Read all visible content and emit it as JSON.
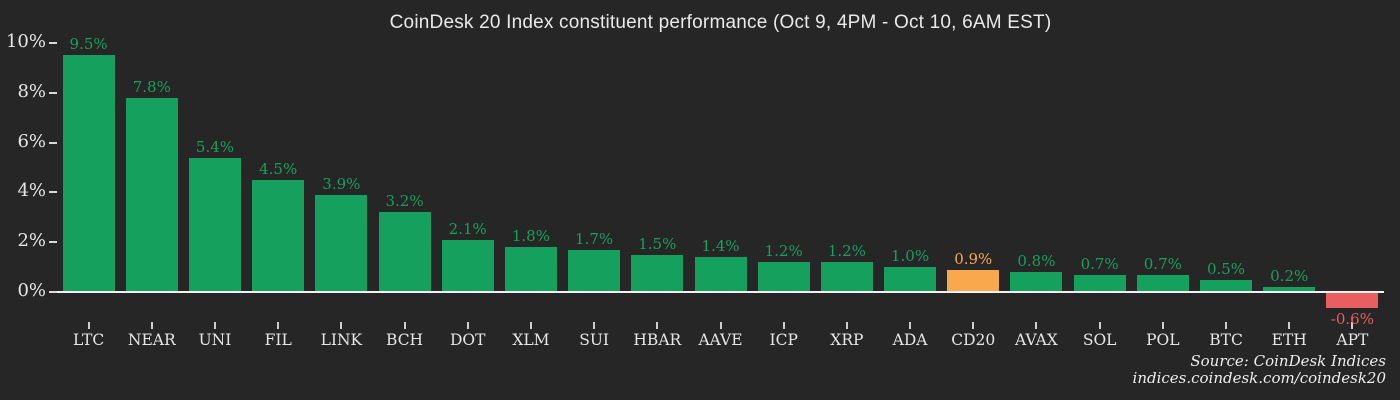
{
  "chart_data": {
    "type": "bar",
    "title": "CoinDesk 20 Index constituent performance (Oct 9, 4PM - Oct 10, 6AM EST)",
    "categories": [
      "LTC",
      "NEAR",
      "UNI",
      "FIL",
      "LINK",
      "BCH",
      "DOT",
      "XLM",
      "SUI",
      "HBAR",
      "AAVE",
      "ICP",
      "XRP",
      "ADA",
      "CD20",
      "AVAX",
      "SOL",
      "POL",
      "BTC",
      "ETH",
      "APT"
    ],
    "values": [
      9.5,
      7.8,
      5.4,
      4.5,
      3.9,
      3.2,
      2.1,
      1.8,
      1.7,
      1.5,
      1.4,
      1.2,
      1.2,
      1.0,
      0.9,
      0.8,
      0.7,
      0.7,
      0.5,
      0.2,
      -0.6
    ],
    "value_labels": [
      "9.5%",
      "7.8%",
      "5.4%",
      "4.5%",
      "3.9%",
      "3.2%",
      "2.1%",
      "1.8%",
      "1.7%",
      "1.5%",
      "1.4%",
      "1.2%",
      "1.2%",
      "1.0%",
      "0.9%",
      "0.8%",
      "0.7%",
      "0.7%",
      "0.5%",
      "0.2%",
      "-0.6%"
    ],
    "highlight_category": "CD20",
    "yticks": [
      0,
      2,
      4,
      6,
      8,
      10
    ],
    "ytick_labels": [
      "0%",
      "2%",
      "4%",
      "6%",
      "8%",
      "10%"
    ],
    "ylim": [
      -1.2,
      10.4
    ],
    "grid": "off",
    "legend": "none",
    "colors": {
      "positive": "#16a05e",
      "highlight": "#faa84d",
      "negative": "#e95f5f",
      "background": "#262626",
      "text": "#e9e9e9",
      "axis_line": "#f2f2f2"
    },
    "source_line1": "Source: CoinDesk Indices",
    "source_line2": "indices.coindesk.com/coindesk20"
  }
}
